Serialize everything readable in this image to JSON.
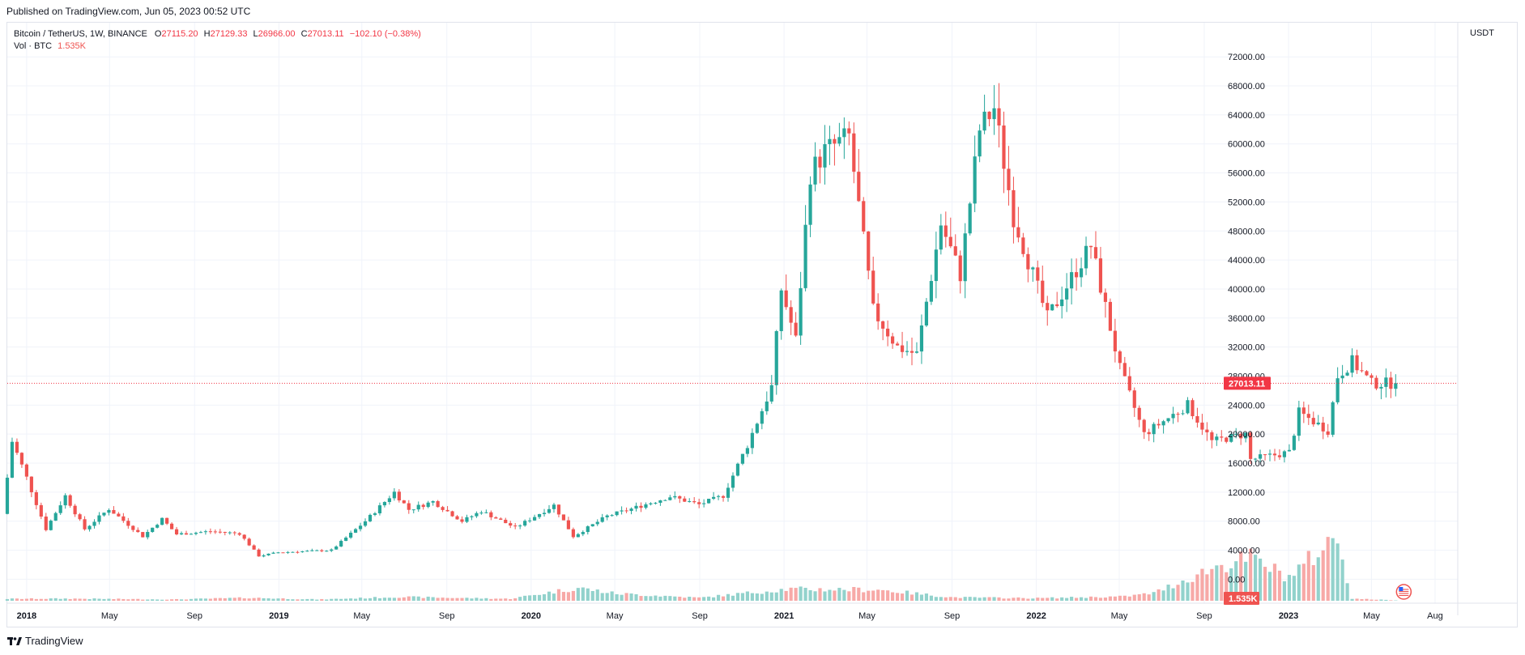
{
  "header": {
    "published": "Published on TradingView.com, Jun 05, 2023 00:52 UTC"
  },
  "legend": {
    "symbol": "Bitcoin / TetherUS, 1W, BINANCE",
    "open_label": "O",
    "open": "27115.20",
    "high_label": "H",
    "high": "27129.33",
    "low_label": "L",
    "low": "26966.00",
    "close_label": "C",
    "close": "27013.11",
    "change": "−102.10 (−0.38%)",
    "volume_label": "Vol · BTC",
    "volume": "1.535K"
  },
  "footer": {
    "brand": "TradingView",
    "logo_icon": "tradingview-logo-icon"
  },
  "colors": {
    "up": "#26a69a",
    "down": "#ef5350",
    "up_volume": "#92d2cc",
    "down_volume": "#f7a9a7",
    "grid": "#f0f3fa",
    "price_line": "#f23645"
  },
  "chart_data": {
    "type": "candlestick",
    "currency": "USDT",
    "interval": "1W",
    "y_ticks": [
      "0.00",
      "4000.00",
      "8000.00",
      "12000.00",
      "16000.00",
      "20000.00",
      "24000.00",
      "28000.00",
      "32000.00",
      "36000.00",
      "40000.00",
      "44000.00",
      "48000.00",
      "52000.00",
      "56000.00",
      "60000.00",
      "64000.00",
      "68000.00",
      "72000.00"
    ],
    "ylim": [
      0,
      74000
    ],
    "x_ticks": [
      {
        "label": "2018",
        "date": "2018-01-01",
        "bold": true
      },
      {
        "label": "May",
        "date": "2018-05-01",
        "bold": false
      },
      {
        "label": "Sep",
        "date": "2018-09-01",
        "bold": false
      },
      {
        "label": "2019",
        "date": "2019-01-01",
        "bold": true
      },
      {
        "label": "May",
        "date": "2019-05-01",
        "bold": false
      },
      {
        "label": "Sep",
        "date": "2019-09-01",
        "bold": false
      },
      {
        "label": "2020",
        "date": "2020-01-01",
        "bold": true
      },
      {
        "label": "May",
        "date": "2020-05-01",
        "bold": false
      },
      {
        "label": "Sep",
        "date": "2020-09-01",
        "bold": false
      },
      {
        "label": "2021",
        "date": "2021-01-01",
        "bold": true
      },
      {
        "label": "May",
        "date": "2021-05-01",
        "bold": false
      },
      {
        "label": "Sep",
        "date": "2021-09-01",
        "bold": false
      },
      {
        "label": "2022",
        "date": "2022-01-01",
        "bold": true
      },
      {
        "label": "May",
        "date": "2022-05-01",
        "bold": false
      },
      {
        "label": "Sep",
        "date": "2022-09-01",
        "bold": false
      },
      {
        "label": "2023",
        "date": "2023-01-01",
        "bold": true
      },
      {
        "label": "May",
        "date": "2023-05-01",
        "bold": false
      },
      {
        "label": "Aug",
        "date": "2023-08-01",
        "bold": false
      }
    ],
    "x_range": [
      "2017-12-04",
      "2023-08-28"
    ],
    "last_price": "27013.11",
    "volume_label": "1.535K",
    "price_path": [
      [
        "2017-12-04",
        9000
      ],
      [
        "2017-12-18",
        19000
      ],
      [
        "2018-01-08",
        14000
      ],
      [
        "2018-02-05",
        6900
      ],
      [
        "2018-03-05",
        11500
      ],
      [
        "2018-04-02",
        6900
      ],
      [
        "2018-05-07",
        9700
      ],
      [
        "2018-06-25",
        5900
      ],
      [
        "2018-07-23",
        8300
      ],
      [
        "2018-08-13",
        6200
      ],
      [
        "2018-10-01",
        6600
      ],
      [
        "2018-11-12",
        6300
      ],
      [
        "2018-12-10",
        3200
      ],
      [
        "2019-01-07",
        3700
      ],
      [
        "2019-03-25",
        4000
      ],
      [
        "2019-05-13",
        8000
      ],
      [
        "2019-06-24",
        12000
      ],
      [
        "2019-07-15",
        9600
      ],
      [
        "2019-08-19",
        10700
      ],
      [
        "2019-09-30",
        8000
      ],
      [
        "2019-10-28",
        9400
      ],
      [
        "2019-12-16",
        7100
      ],
      [
        "2020-02-10",
        10200
      ],
      [
        "2020-03-09",
        5900
      ],
      [
        "2020-04-27",
        8700
      ],
      [
        "2020-06-01",
        9700
      ],
      [
        "2020-07-27",
        11400
      ],
      [
        "2020-09-07",
        10300
      ],
      [
        "2020-10-12",
        11500
      ],
      [
        "2020-11-16",
        18500
      ],
      [
        "2020-12-21",
        26500
      ],
      [
        "2021-01-04",
        40000
      ],
      [
        "2021-01-25",
        33000
      ],
      [
        "2021-02-15",
        56000
      ],
      [
        "2021-03-08",
        59000
      ],
      [
        "2021-04-12",
        61000
      ],
      [
        "2021-05-17",
        37000
      ],
      [
        "2021-06-21",
        32000
      ],
      [
        "2021-07-19",
        31000
      ],
      [
        "2021-08-23",
        49000
      ],
      [
        "2021-09-20",
        42000
      ],
      [
        "2021-10-18",
        62000
      ],
      [
        "2021-11-08",
        65000
      ],
      [
        "2021-12-06",
        50000
      ],
      [
        "2022-01-24",
        36000
      ],
      [
        "2022-03-28",
        46000
      ],
      [
        "2022-05-09",
        29000
      ],
      [
        "2022-06-13",
        20000
      ],
      [
        "2022-08-15",
        24000
      ],
      [
        "2022-09-19",
        19000
      ],
      [
        "2022-11-07",
        20000
      ],
      [
        "2022-11-14",
        16500
      ],
      [
        "2023-01-09",
        17500
      ],
      [
        "2023-01-23",
        23000
      ],
      [
        "2023-03-06",
        20500
      ],
      [
        "2023-03-20",
        28000
      ],
      [
        "2023-04-10",
        30000
      ],
      [
        "2023-05-08",
        27000
      ],
      [
        "2023-06-05",
        27013
      ]
    ],
    "volume_profile": [
      [
        "2017-12-04",
        450
      ],
      [
        "2018-03-01",
        500
      ],
      [
        "2018-08-01",
        300
      ],
      [
        "2018-11-19",
        700
      ],
      [
        "2019-03-01",
        300
      ],
      [
        "2019-06-24",
        900
      ],
      [
        "2019-12-01",
        450
      ],
      [
        "2020-03-09",
        3000
      ],
      [
        "2020-05-01",
        1700
      ],
      [
        "2020-09-01",
        700
      ],
      [
        "2021-01-04",
        2700
      ],
      [
        "2021-05-17",
        2600
      ],
      [
        "2021-09-01",
        800
      ],
      [
        "2022-01-01",
        600
      ],
      [
        "2022-05-09",
        1000
      ],
      [
        "2022-06-20",
        1800
      ],
      [
        "2022-09-19",
        8000
      ],
      [
        "2022-11-07",
        10000
      ],
      [
        "2023-01-01",
        5500
      ],
      [
        "2023-03-13",
        15000
      ],
      [
        "2023-04-03",
        500
      ],
      [
        "2023-06-05",
        100
      ]
    ]
  }
}
